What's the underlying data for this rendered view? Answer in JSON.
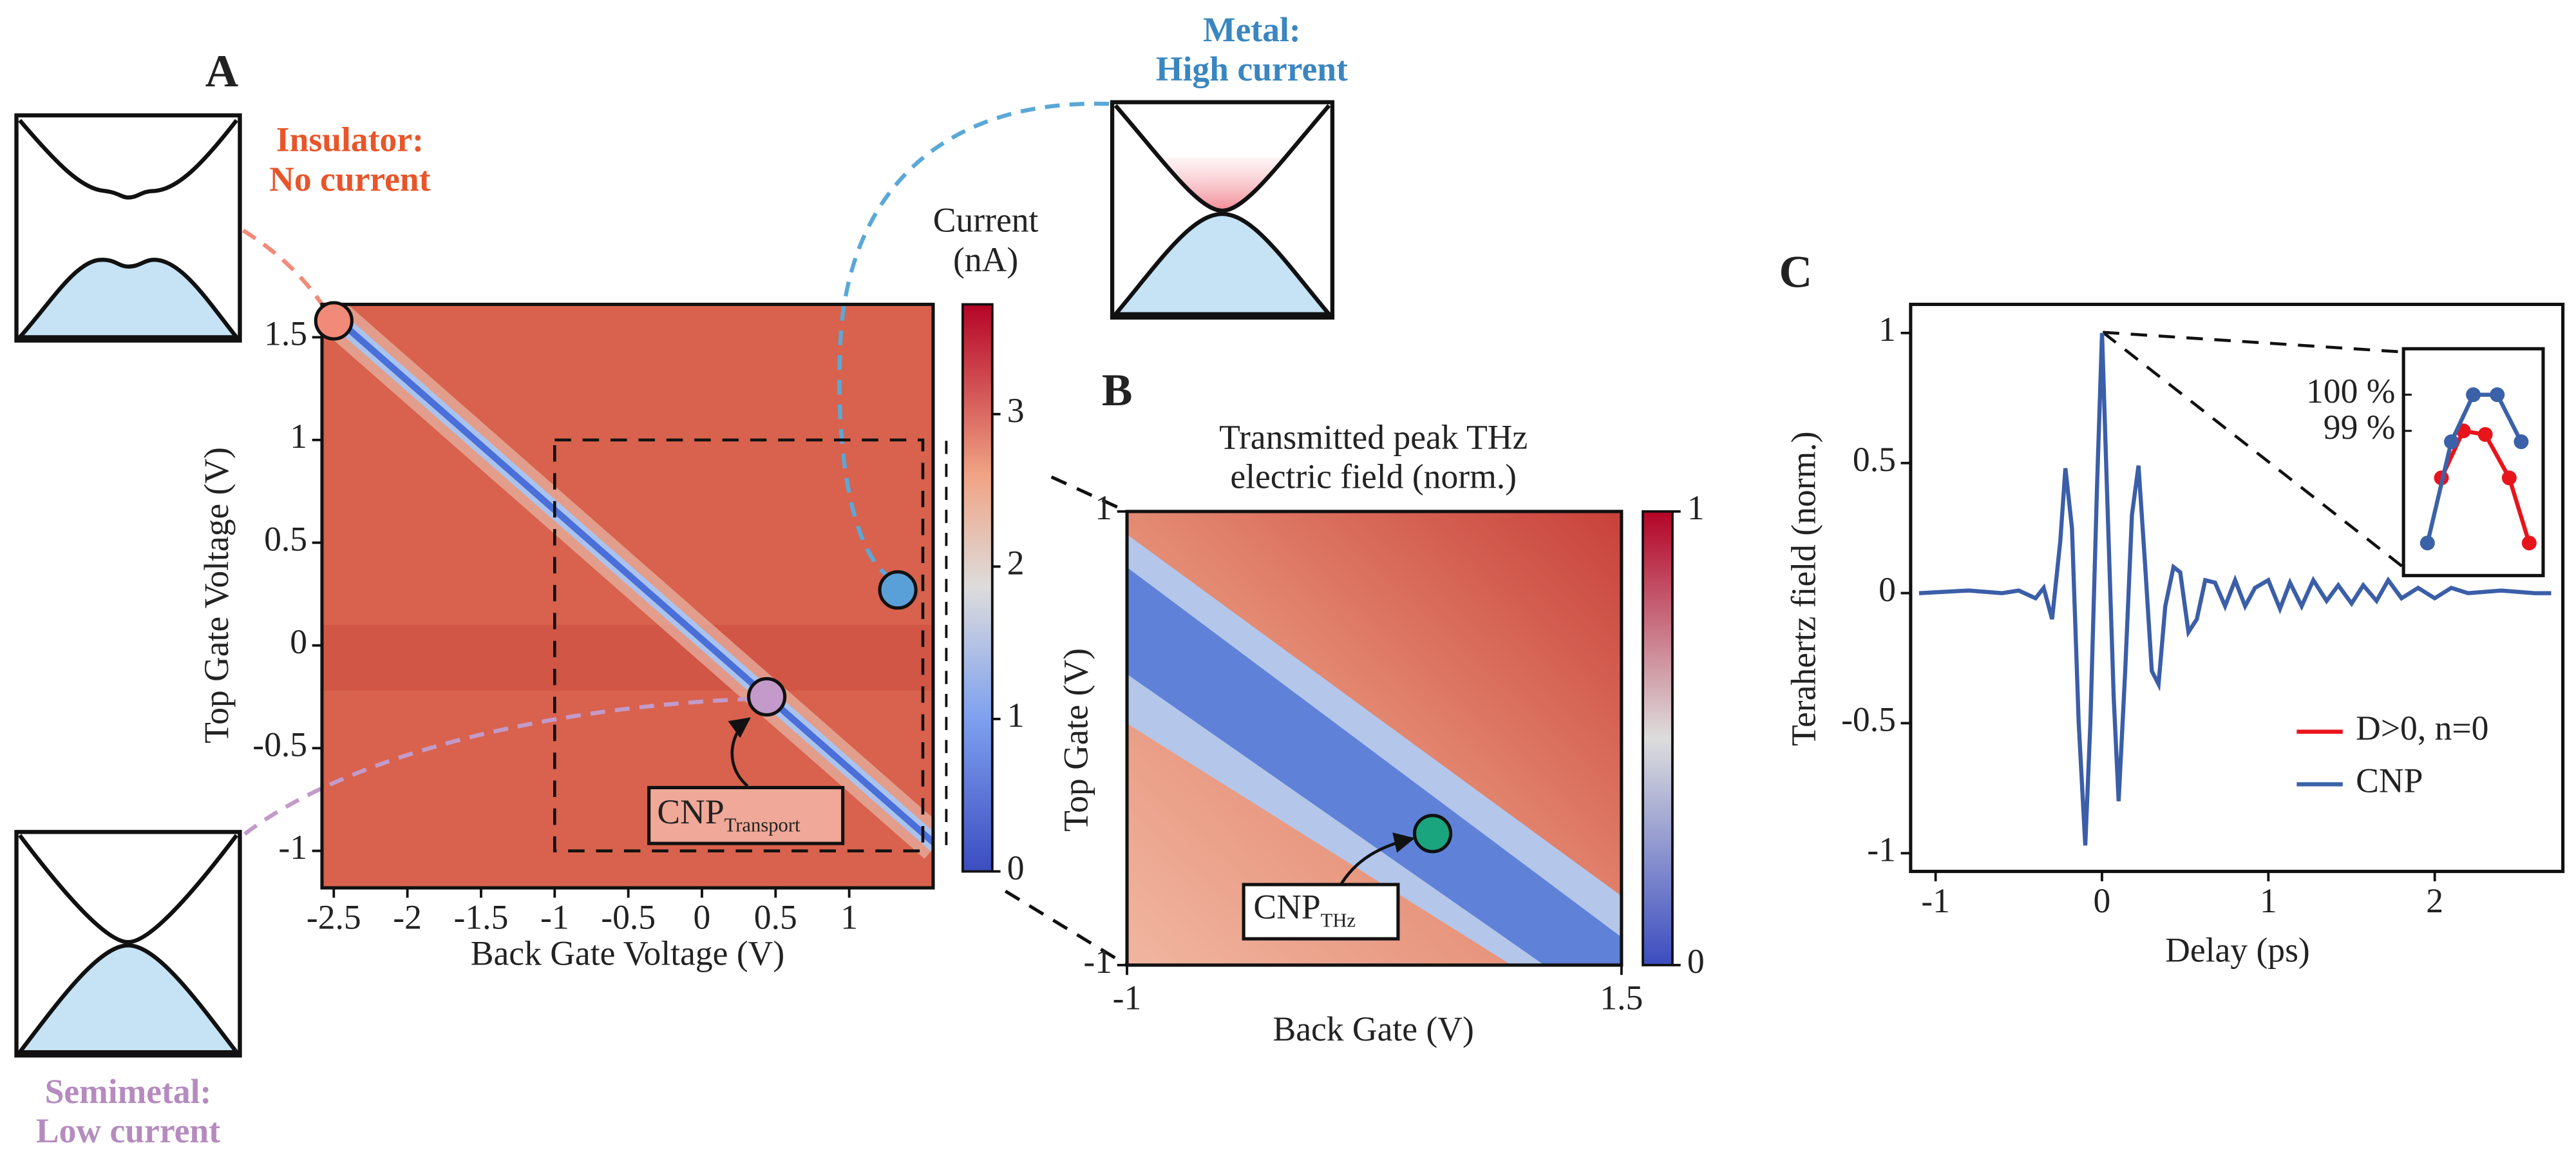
{
  "chart_data": [
    {
      "type": "heatmap",
      "panel": "A",
      "xlabel": "Back Gate Voltage (V)",
      "ylabel": "Top Gate Voltage (V)",
      "xlim": [
        -2.58,
        1.57
      ],
      "ylim": [
        -1.18,
        1.66
      ],
      "xticks": [
        -2.5,
        -2,
        -1.5,
        -1,
        -0.5,
        0,
        0.5,
        1
      ],
      "yticks": [
        -1,
        -0.5,
        0,
        0.5,
        1,
        1.5
      ],
      "colorbar": {
        "title": [
          "Current",
          "(nA)"
        ],
        "lim": [
          0,
          3.72
        ],
        "ticks": [
          0,
          1,
          2,
          3
        ]
      },
      "markers": [
        {
          "name": "Insulator:",
          "subtitle": "No current",
          "x": -2.5,
          "y": 1.58,
          "color": "#f28a79",
          "label_color": "#e8552a"
        },
        {
          "name": "Metal:",
          "subtitle": "High current",
          "x": 1.33,
          "y": 0.27,
          "color": "#5aa0d8",
          "label_color": "#3a86c0"
        },
        {
          "name": "Semimetal:",
          "subtitle": "Low current",
          "x": 0.44,
          "y": -0.25,
          "color": "#c39ac9",
          "label_color": "#b58bbf"
        }
      ],
      "annotation": {
        "text": "CNP",
        "sub": "Transport"
      },
      "zoom_box": {
        "xlim": [
          -1,
          1.5
        ],
        "ylim": [
          -1,
          1
        ]
      }
    },
    {
      "type": "heatmap",
      "panel": "B",
      "title": [
        "Transmitted peak THz",
        "electric field (norm.)"
      ],
      "xlabel": "Back Gate (V)",
      "ylabel": "Top Gate (V)",
      "xlim": [
        -1,
        1.5
      ],
      "ylim": [
        -1,
        1
      ],
      "xticks": [
        -1,
        1.5
      ],
      "yticks": [
        -1,
        1
      ],
      "colorbar": {
        "lim": [
          0,
          1
        ],
        "ticks": [
          0,
          1
        ]
      },
      "markers": [
        {
          "x": 0.545,
          "y": -0.42,
          "color": "#1aa57e"
        }
      ],
      "annotation": {
        "text": "CNP",
        "sub": "THz"
      }
    },
    {
      "type": "line",
      "panel": "C",
      "xlabel": "Delay (ps)",
      "ylabel": "Terahertz field (norm.)",
      "xlim": [
        -1.15,
        2.77
      ],
      "ylim": [
        -1.07,
        1.11
      ],
      "xticks": [
        -1,
        0,
        1,
        2
      ],
      "yticks": [
        -1,
        -0.5,
        0,
        0.5,
        1
      ],
      "color": "#3b5ea8",
      "x": [
        -1.1,
        -0.8,
        -0.6,
        -0.5,
        -0.4,
        -0.35,
        -0.3,
        -0.25,
        -0.22,
        -0.18,
        -0.14,
        -0.1,
        -0.07,
        -0.03,
        0,
        0.03,
        0.07,
        0.1,
        0.14,
        0.18,
        0.22,
        0.26,
        0.3,
        0.34,
        0.38,
        0.43,
        0.47,
        0.52,
        0.57,
        0.62,
        0.68,
        0.74,
        0.8,
        0.86,
        0.92,
        1.0,
        1.07,
        1.13,
        1.2,
        1.27,
        1.35,
        1.42,
        1.5,
        1.57,
        1.65,
        1.72,
        1.8,
        1.9,
        2.0,
        2.1,
        2.2,
        2.4,
        2.6,
        2.7
      ],
      "values": [
        0,
        0.01,
        0,
        0.01,
        -0.02,
        0.02,
        -0.1,
        0.2,
        0.48,
        0.25,
        -0.5,
        -0.97,
        -0.5,
        0.4,
        1.0,
        0.4,
        -0.4,
        -0.8,
        -0.3,
        0.3,
        0.49,
        0.1,
        -0.3,
        -0.35,
        -0.05,
        0.1,
        0.08,
        -0.15,
        -0.1,
        0.05,
        0.04,
        -0.05,
        0.05,
        -0.05,
        0.02,
        0.05,
        -0.06,
        0.04,
        -0.05,
        0.05,
        -0.03,
        0.03,
        -0.04,
        0.03,
        -0.03,
        0.05,
        -0.02,
        0.02,
        -0.02,
        0.02,
        0,
        0.01,
        0,
        0
      ],
      "inset": {
        "xlim": [
          -0.035,
          0.035
        ],
        "ylim": [
          95,
          101.27
        ],
        "yticks": [
          {
            "value": 99,
            "label": "99 %"
          },
          {
            "value": 100,
            "label": "100 %"
          }
        ],
        "series": [
          {
            "name": "D>0, n=0",
            "color": "#e8141c",
            "x": [
              -0.016,
              -0.005,
              0.006,
              0.018,
              0.028
            ],
            "values": [
              97.7,
              99,
              98.9,
              97.7,
              95.9
            ]
          },
          {
            "name": "CNP",
            "color": "#3b62a8",
            "x": [
              -0.023,
              -0.011,
              0,
              0.012,
              0.024
            ],
            "values": [
              95.9,
              98.7,
              100,
              100,
              98.7
            ]
          }
        ]
      }
    }
  ]
}
